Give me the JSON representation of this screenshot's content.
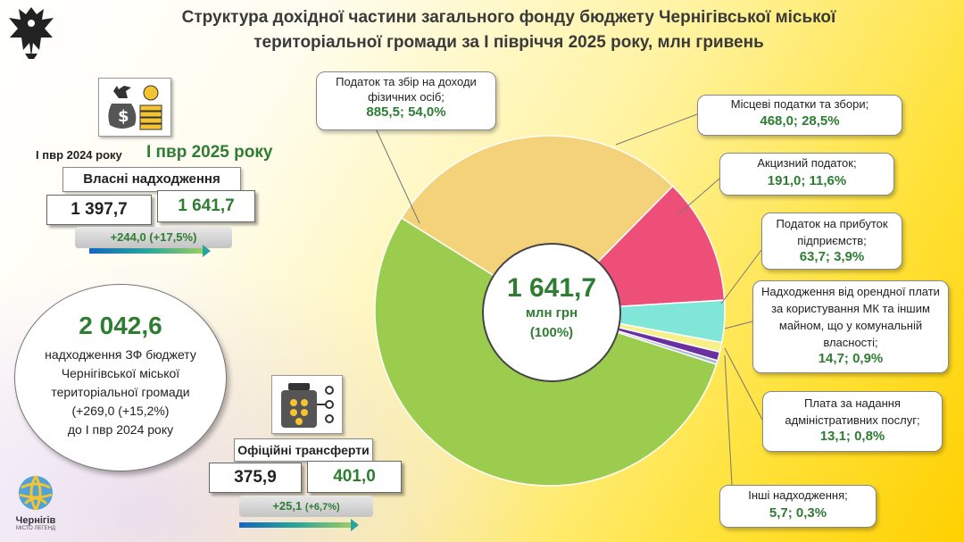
{
  "title": {
    "line1": "Структура дохідної частини загального фонду бюджету Чернігівської міської",
    "line2": "територіальної громади за І півріччя 2025 року, млн гривень"
  },
  "own": {
    "label_2024": "І пвр 2024 року",
    "label_2025": "І пвр 2025 року",
    "heading": "Власні надходження",
    "value_2024": "1 397,7",
    "value_2025": "1 641,7",
    "diff": "+244,0 (+17,5%)"
  },
  "total": {
    "value": "2 042,6",
    "line1": "надходження ЗФ бюджету",
    "line2": "Чернігівської міської",
    "line3": "територіальної громади",
    "line4": "(+269,0 (+15,2%)",
    "line5": "до І пвр 2024 року"
  },
  "transfers": {
    "heading": "Офіційні трансферти",
    "value_2024": "375,9",
    "value_2025": "401,0",
    "diff_main": "+25,1 ",
    "diff_pct": "(+6,7%)"
  },
  "center": {
    "value": "1 641,7",
    "unit": "млн грн",
    "pct": "(100%)"
  },
  "logo": {
    "city": "Чернігів",
    "tagline": "МІСТО ЛЕГЕНД"
  },
  "chart_data": {
    "type": "pie",
    "categories": [
      "Податок та збір на доходи фізичних осіб",
      "Місцеві податки та збори",
      "Акцизний податок",
      "Податок на прибуток підприємств",
      "Надходження від орендної плати за користування МК та іншим майном, що у комунальній власності",
      "Плата за надання адміністративних послуг",
      "Інші надходження"
    ],
    "values": [
      885.5,
      468.0,
      191.0,
      63.7,
      14.7,
      13.1,
      5.7
    ],
    "percents": [
      54.0,
      28.5,
      11.6,
      3.9,
      0.9,
      0.8,
      0.3
    ],
    "colors": [
      "#9ccc4e",
      "#f3d27a",
      "#ee4f79",
      "#7fe6d8",
      "#f7f08a",
      "#6a2fa0",
      "#9fb6d6"
    ],
    "callouts": [
      {
        "text": "Податок та збір на доходи фізичних осіб;",
        "value": "885,5; 54,0%"
      },
      {
        "text": "Місцеві податки та збори;",
        "value": "468,0;  28,5%"
      },
      {
        "text": "Акцизний податок;",
        "value": "191,0; 11,6%"
      },
      {
        "text": "Податок на прибуток підприємств;",
        "value": "63,7; 3,9%"
      },
      {
        "text": "Надходження від орендної плати за користування МК та іншим майном, що у комунальній власності;",
        "value": "14,7; 0,9%"
      },
      {
        "text": "Плата за надання адміністративних послуг;",
        "value": "13,1; 0,8%"
      },
      {
        "text": "Інші надходження;",
        "value": "5,7; 0,3%"
      }
    ]
  }
}
